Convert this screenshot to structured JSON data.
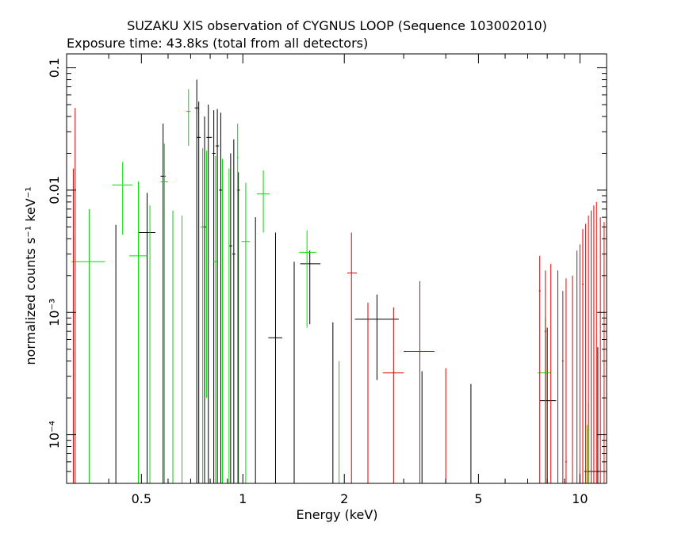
{
  "chart_data": {
    "type": "scatter",
    "title": "SUZAKU XIS observation of CYGNUS LOOP (Sequence 103002010)",
    "subtitle": "Exposure time: 43.8ks (total from all detectors)",
    "xlabel": "Energy (keV)",
    "ylabel": "normalized counts s⁻¹ keV⁻¹",
    "x_scale": "log",
    "y_scale": "log",
    "xlim": [
      0.3,
      12.0
    ],
    "ylim": [
      4e-05,
      0.13
    ],
    "x_ticks": [
      {
        "value": 0.5,
        "label": "0.5"
      },
      {
        "value": 1,
        "label": "1"
      },
      {
        "value": 2,
        "label": "2"
      },
      {
        "value": 5,
        "label": "5"
      },
      {
        "value": 10,
        "label": "10"
      }
    ],
    "y_ticks": [
      {
        "value": 0.0001,
        "label": "10⁻⁴"
      },
      {
        "value": 0.001,
        "label": "10⁻³"
      },
      {
        "value": 0.01,
        "label": "0.01"
      },
      {
        "value": 0.1,
        "label": "0.1"
      }
    ],
    "grid": false,
    "series": [
      {
        "color": "#000000",
        "points": [
          {
            "x": 0.42,
            "xlo": 0.42,
            "xhi": 0.42,
            "y": 0.0052,
            "ylo": 4e-05,
            "yhi": 0.0052
          },
          {
            "x": 0.52,
            "xlo": 0.49,
            "xhi": 0.55,
            "y": 0.0045,
            "ylo": 4e-05,
            "yhi": 0.0095
          },
          {
            "x": 0.58,
            "xlo": 0.57,
            "xhi": 0.59,
            "y": 0.013,
            "ylo": 4e-05,
            "yhi": 0.035
          },
          {
            "x": 0.73,
            "xlo": 0.72,
            "xhi": 0.74,
            "y": 0.047,
            "ylo": 4e-05,
            "yhi": 0.08
          },
          {
            "x": 0.74,
            "xlo": 0.73,
            "xhi": 0.75,
            "y": 0.027,
            "ylo": 4e-05,
            "yhi": 0.053
          },
          {
            "x": 0.77,
            "xlo": 0.76,
            "xhi": 0.78,
            "y": 0.005,
            "ylo": 4e-05,
            "yhi": 0.04
          },
          {
            "x": 0.79,
            "xlo": 0.78,
            "xhi": 0.81,
            "y": 0.027,
            "ylo": 4e-05,
            "yhi": 0.05
          },
          {
            "x": 0.82,
            "xlo": 0.81,
            "xhi": 0.83,
            "y": 0.02,
            "ylo": 4e-05,
            "yhi": 0.045
          },
          {
            "x": 0.84,
            "xlo": 0.83,
            "xhi": 0.85,
            "y": 0.023,
            "ylo": 4e-05,
            "yhi": 0.046
          },
          {
            "x": 0.86,
            "xlo": 0.85,
            "xhi": 0.87,
            "y": 0.01,
            "ylo": 4e-05,
            "yhi": 0.043
          },
          {
            "x": 0.92,
            "xlo": 0.91,
            "xhi": 0.93,
            "y": 0.0035,
            "ylo": 4e-05,
            "yhi": 0.02
          },
          {
            "x": 0.94,
            "xlo": 0.93,
            "xhi": 0.95,
            "y": 0.003,
            "ylo": 4e-05,
            "yhi": 0.026
          },
          {
            "x": 0.97,
            "xlo": 0.96,
            "xhi": 0.98,
            "y": 0.01,
            "ylo": 4e-05,
            "yhi": 0.014
          },
          {
            "x": 1.09,
            "xlo": 1.09,
            "xhi": 1.09,
            "y": 0.006,
            "ylo": 4e-05,
            "yhi": 0.006
          },
          {
            "x": 1.25,
            "xlo": 1.19,
            "xhi": 1.31,
            "y": 0.00062,
            "ylo": 4e-05,
            "yhi": 0.0045
          },
          {
            "x": 1.42,
            "xlo": 1.42,
            "xhi": 1.42,
            "y": 0.0026,
            "ylo": 4e-05,
            "yhi": 0.0026
          },
          {
            "x": 1.58,
            "xlo": 1.48,
            "xhi": 1.7,
            "y": 0.0025,
            "ylo": 0.0008,
            "yhi": 0.0032
          },
          {
            "x": 1.85,
            "xlo": 1.85,
            "xhi": 1.85,
            "y": 0.00083,
            "ylo": 4e-05,
            "yhi": 0.00083
          },
          {
            "x": 2.5,
            "xlo": 2.15,
            "xhi": 2.9,
            "y": 0.00088,
            "ylo": 0.00028,
            "yhi": 0.0014
          },
          {
            "x": 3.4,
            "xlo": 3.4,
            "xhi": 3.4,
            "y": 0.00033,
            "ylo": 4e-05,
            "yhi": 0.00033
          },
          {
            "x": 4.75,
            "xlo": 4.75,
            "xhi": 4.75,
            "y": 0.00026,
            "ylo": 4e-05,
            "yhi": 0.00026
          },
          {
            "x": 8.0,
            "xlo": 7.6,
            "xhi": 8.5,
            "y": 0.00019,
            "ylo": 4e-05,
            "yhi": 0.00075
          },
          {
            "x": 11.3,
            "xlo": 10.3,
            "xhi": 12.0,
            "y": 5e-05,
            "ylo": 4e-05,
            "yhi": 0.00052
          }
        ]
      },
      {
        "color": "#00dd00",
        "points": [
          {
            "x": 0.35,
            "xlo": 0.31,
            "xhi": 0.39,
            "y": 0.0026,
            "ylo": 4e-05,
            "yhi": 0.007
          },
          {
            "x": 0.44,
            "xlo": 0.41,
            "xhi": 0.47,
            "y": 0.011,
            "ylo": 0.0043,
            "yhi": 0.017
          },
          {
            "x": 0.49,
            "xlo": 0.46,
            "xhi": 0.52,
            "y": 0.0029,
            "ylo": 4e-05,
            "yhi": 0.0118
          },
          {
            "x": 0.53,
            "xlo": 0.53,
            "xhi": 0.53,
            "y": 0.0075,
            "ylo": 4e-05,
            "yhi": 0.0075
          },
          {
            "x": 0.585,
            "xlo": 0.57,
            "xhi": 0.6,
            "y": 0.0117,
            "ylo": 4e-05,
            "yhi": 0.024
          },
          {
            "x": 0.62,
            "xlo": 0.62,
            "xhi": 0.62,
            "y": 0.0068,
            "ylo": 4e-05,
            "yhi": 0.0068
          },
          {
            "x": 0.66,
            "xlo": 0.66,
            "xhi": 0.66,
            "y": 0.0062,
            "ylo": 4e-05,
            "yhi": 0.0062
          },
          {
            "x": 0.69,
            "xlo": 0.68,
            "xhi": 0.7,
            "y": 0.044,
            "ylo": 0.023,
            "yhi": 0.067
          },
          {
            "x": 0.76,
            "xlo": 0.75,
            "xhi": 0.77,
            "y": 0.005,
            "ylo": 4e-05,
            "yhi": 0.022
          },
          {
            "x": 0.78,
            "xlo": 0.78,
            "xhi": 0.78,
            "y": 0.021,
            "ylo": 0.0002,
            "yhi": 0.021
          },
          {
            "x": 0.83,
            "xlo": 0.82,
            "xhi": 0.84,
            "y": 0.0026,
            "ylo": 4e-05,
            "yhi": 0.019
          },
          {
            "x": 0.87,
            "xlo": 0.87,
            "xhi": 0.87,
            "y": 0.004,
            "ylo": 4e-05,
            "yhi": 0.018
          },
          {
            "x": 0.91,
            "xlo": 0.91,
            "xhi": 0.91,
            "y": 0.015,
            "ylo": 4e-05,
            "yhi": 0.015
          },
          {
            "x": 0.965,
            "xlo": 0.96,
            "xhi": 0.97,
            "y": 0.0185,
            "ylo": 4e-05,
            "yhi": 0.035
          },
          {
            "x": 1.02,
            "xlo": 0.99,
            "xhi": 1.05,
            "y": 0.0038,
            "ylo": 4e-05,
            "yhi": 0.0115
          },
          {
            "x": 1.15,
            "xlo": 1.1,
            "xhi": 1.2,
            "y": 0.0093,
            "ylo": 0.0045,
            "yhi": 0.0145
          },
          {
            "x": 1.55,
            "xlo": 1.47,
            "xhi": 1.65,
            "y": 0.0031,
            "ylo": 0.00075,
            "yhi": 0.0047
          },
          {
            "x": 1.93,
            "xlo": 1.93,
            "xhi": 1.93,
            "y": 0.0004,
            "ylo": 4e-05,
            "yhi": 0.0004
          },
          {
            "x": 7.9,
            "xlo": 7.5,
            "xhi": 8.2,
            "y": 0.00032,
            "ylo": 4e-05,
            "yhi": 0.0009
          },
          {
            "x": 10.5,
            "xlo": 10.5,
            "xhi": 10.5,
            "y": 9e-05,
            "ylo": 4e-05,
            "yhi": 0.00012
          },
          {
            "x": 10.6,
            "xlo": 10.6,
            "xhi": 10.6,
            "y": 6e-05,
            "ylo": 4e-05,
            "yhi": 0.00018
          }
        ]
      },
      {
        "color": "#dd0000",
        "points": [
          {
            "x": 0.314,
            "xlo": 0.314,
            "xhi": 0.314,
            "y": 0.014,
            "ylo": 4e-05,
            "yhi": 0.015
          },
          {
            "x": 0.318,
            "xlo": 0.318,
            "xhi": 0.318,
            "y": 0.045,
            "ylo": 4e-05,
            "yhi": 0.047
          },
          {
            "x": 2.1,
            "xlo": 2.04,
            "xhi": 2.18,
            "y": 0.0021,
            "ylo": 4e-05,
            "yhi": 0.0045
          },
          {
            "x": 2.35,
            "xlo": 2.35,
            "xhi": 2.35,
            "y": 0.0012,
            "ylo": 4e-05,
            "yhi": 0.0012
          },
          {
            "x": 2.8,
            "xlo": 2.6,
            "xhi": 3.0,
            "y": 0.00032,
            "ylo": 4e-05,
            "yhi": 0.0011
          },
          {
            "x": 3.35,
            "xlo": 3.0,
            "xhi": 3.7,
            "y": 0.00048,
            "ylo": 4e-05,
            "yhi": 0.0018
          },
          {
            "x": 4.0,
            "xlo": 4.0,
            "xhi": 4.0,
            "y": 0.00035,
            "ylo": 4e-05,
            "yhi": 0.00035
          },
          {
            "x": 7.6,
            "xlo": 7.55,
            "xhi": 7.65,
            "y": 0.0015,
            "ylo": 4e-05,
            "yhi": 0.0029
          },
          {
            "x": 7.9,
            "xlo": 7.85,
            "xhi": 7.95,
            "y": 0.0007,
            "ylo": 4e-05,
            "yhi": 0.0022
          },
          {
            "x": 8.2,
            "xlo": 8.2,
            "xhi": 8.2,
            "y": 0.0012,
            "ylo": 4e-05,
            "yhi": 0.0025
          },
          {
            "x": 8.6,
            "xlo": 8.6,
            "xhi": 8.6,
            "y": 0.0008,
            "ylo": 4e-05,
            "yhi": 0.0022
          },
          {
            "x": 8.9,
            "xlo": 8.85,
            "xhi": 8.95,
            "y": 0.0004,
            "ylo": 4e-05,
            "yhi": 0.0015
          },
          {
            "x": 9.1,
            "xlo": 9.05,
            "xhi": 9.15,
            "y": 6e-05,
            "ylo": 4e-05,
            "yhi": 0.0019
          },
          {
            "x": 9.5,
            "xlo": 9.5,
            "xhi": 9.5,
            "y": 0.0006,
            "ylo": 4e-05,
            "yhi": 0.002
          },
          {
            "x": 9.8,
            "xlo": 9.8,
            "xhi": 9.8,
            "y": 0.0032,
            "ylo": 4e-05,
            "yhi": 0.0032
          },
          {
            "x": 10.0,
            "xlo": 10.0,
            "xhi": 10.0,
            "y": 0.002,
            "ylo": 4e-05,
            "yhi": 0.0036
          },
          {
            "x": 10.2,
            "xlo": 10.15,
            "xhi": 10.25,
            "y": 0.0017,
            "ylo": 4e-05,
            "yhi": 0.0048
          },
          {
            "x": 10.4,
            "xlo": 10.4,
            "xhi": 10.4,
            "y": 0.003,
            "ylo": 4e-05,
            "yhi": 0.0053
          },
          {
            "x": 10.6,
            "xlo": 10.6,
            "xhi": 10.6,
            "y": 0.0035,
            "ylo": 4e-05,
            "yhi": 0.0062
          },
          {
            "x": 10.8,
            "xlo": 10.8,
            "xhi": 10.8,
            "y": 0.004,
            "ylo": 4e-05,
            "yhi": 0.0068
          },
          {
            "x": 11.0,
            "xlo": 11.0,
            "xhi": 11.0,
            "y": 0.0038,
            "ylo": 4e-05,
            "yhi": 0.0075
          },
          {
            "x": 11.2,
            "xlo": 11.2,
            "xhi": 11.2,
            "y": 0.0045,
            "ylo": 4e-05,
            "yhi": 0.008
          },
          {
            "x": 11.5,
            "xlo": 11.5,
            "xhi": 11.5,
            "y": 0.003,
            "ylo": 4e-05,
            "yhi": 0.006
          },
          {
            "x": 11.8,
            "xlo": 11.8,
            "xhi": 11.8,
            "y": 0.0025,
            "ylo": 4e-05,
            "yhi": 0.0055
          }
        ]
      }
    ]
  }
}
